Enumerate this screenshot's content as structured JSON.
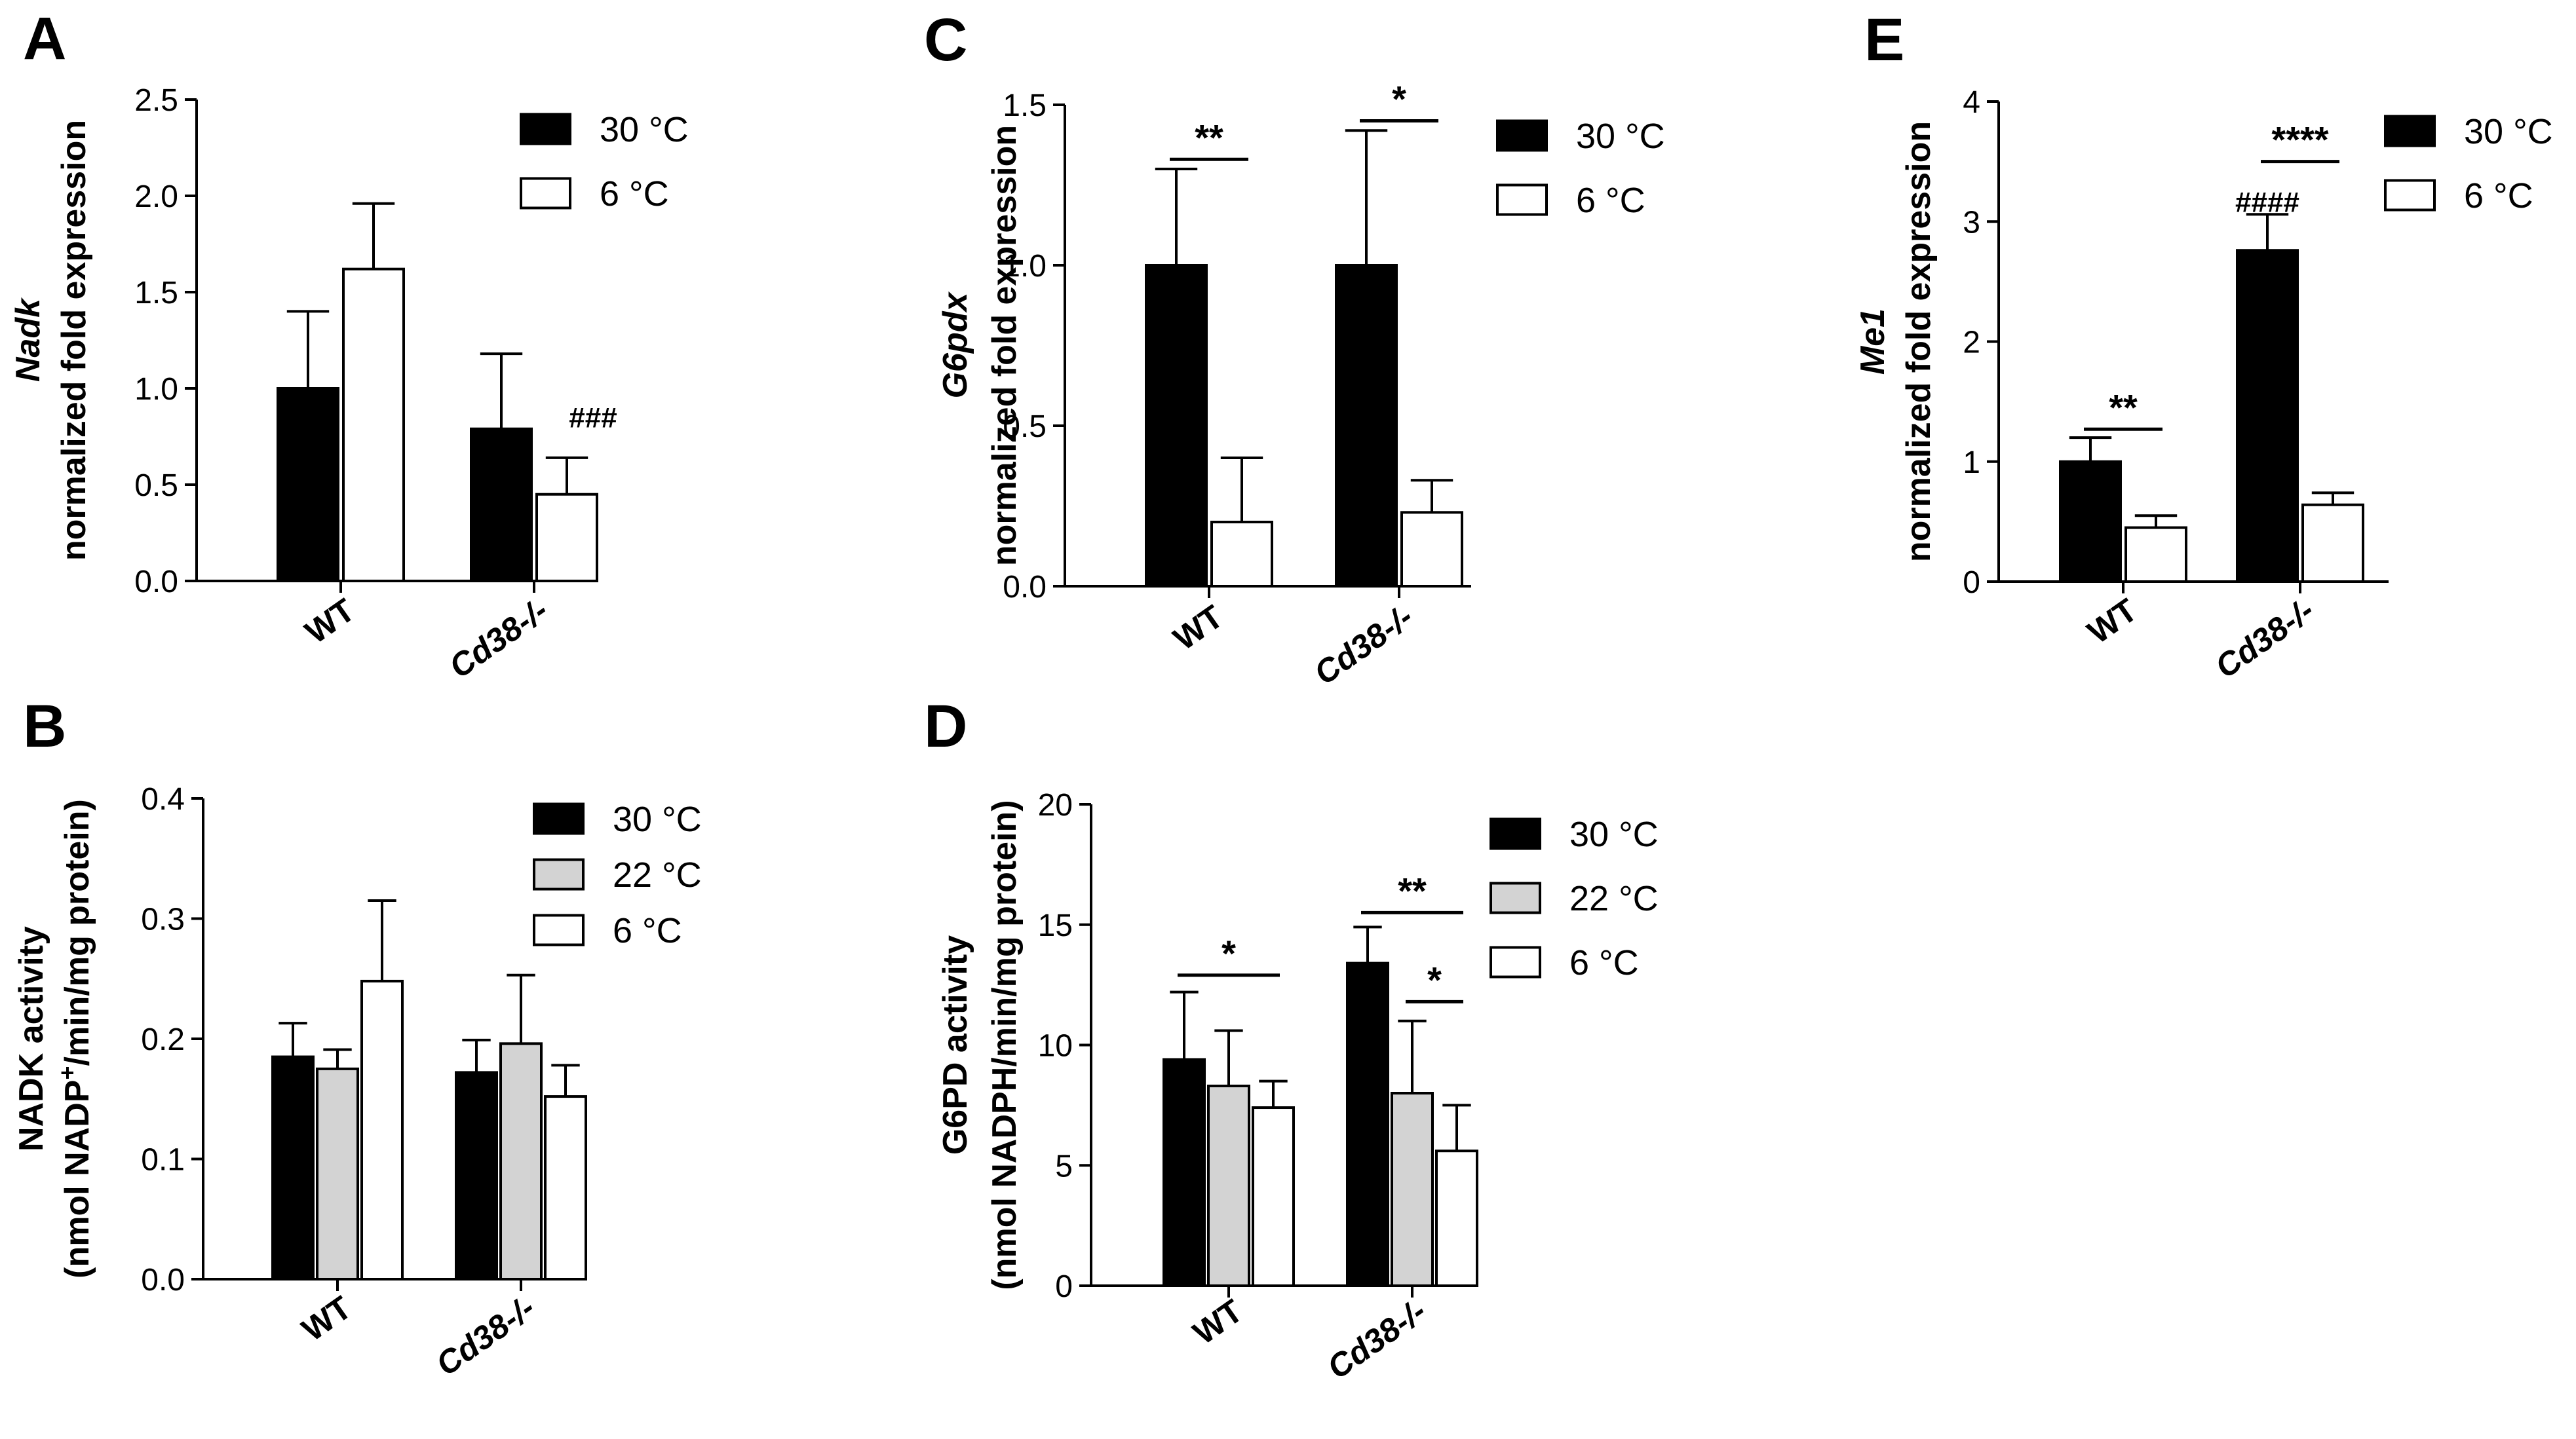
{
  "chart_data": [
    {
      "panel": "A",
      "type": "bar",
      "ylabel_lines": [
        "Nadk",
        "normalized fold expression"
      ],
      "ylabel_italic_line": 0,
      "ylim": [
        0,
        2.5
      ],
      "yticks": [
        0.0,
        0.5,
        1.0,
        1.5,
        2.0,
        2.5
      ],
      "ytick_labels": [
        "0.0",
        "0.5",
        "1.0",
        "1.5",
        "2.0",
        "2.5"
      ],
      "categories": [
        "WT",
        "Cd38-/-"
      ],
      "series": [
        {
          "name": "30 °C",
          "fill": "#000000",
          "values": [
            1.0,
            0.79
          ],
          "errors": [
            0.4,
            0.39
          ]
        },
        {
          "name": "6 °C",
          "fill": "#ffffff",
          "values": [
            1.62,
            0.45
          ],
          "errors": [
            0.34,
            0.19
          ]
        }
      ],
      "annotations": [
        {
          "kind": "hash",
          "text": "###",
          "category": 1,
          "series": 1
        }
      ]
    },
    {
      "panel": "B",
      "type": "bar",
      "ylabel_lines": [
        "NADK activity",
        "(nmol NADP+/min/mg protein)"
      ],
      "ylabel_italic_line": -1,
      "ylim": [
        0,
        0.4
      ],
      "yticks": [
        0.0,
        0.1,
        0.2,
        0.3,
        0.4
      ],
      "ytick_labels": [
        "0.0",
        "0.1",
        "0.2",
        "0.3",
        "0.4"
      ],
      "categories": [
        "WT",
        "Cd38-/-"
      ],
      "series": [
        {
          "name": "30 °C",
          "fill": "#000000",
          "values": [
            0.185,
            0.172
          ],
          "errors": [
            0.028,
            0.027
          ]
        },
        {
          "name": "22 °C",
          "fill": "#d3d3d3",
          "values": [
            0.175,
            0.196
          ],
          "errors": [
            0.016,
            0.057
          ]
        },
        {
          "name": "6 °C",
          "fill": "#ffffff",
          "values": [
            0.248,
            0.152
          ],
          "errors": [
            0.067,
            0.026
          ]
        }
      ],
      "annotations": []
    },
    {
      "panel": "C",
      "type": "bar",
      "ylabel_lines": [
        "G6pdx",
        "normalized fold expression"
      ],
      "ylabel_italic_line": 0,
      "ylim": [
        0,
        1.5
      ],
      "yticks": [
        0.0,
        0.5,
        1.0,
        1.5
      ],
      "ytick_labels": [
        "0.0",
        "0.5",
        "1.0",
        "1.5"
      ],
      "categories": [
        "WT",
        "Cd38-/-"
      ],
      "series": [
        {
          "name": "30 °C",
          "fill": "#000000",
          "values": [
            1.0,
            1.0
          ],
          "errors": [
            0.3,
            0.42
          ]
        },
        {
          "name": "6 °C",
          "fill": "#ffffff",
          "values": [
            0.2,
            0.23
          ],
          "errors": [
            0.2,
            0.1
          ]
        }
      ],
      "annotations": [
        {
          "kind": "sig",
          "text": "**",
          "category": 0,
          "from": 0,
          "to": 1,
          "y": 1.33
        },
        {
          "kind": "sig",
          "text": "*",
          "category": 1,
          "from": 0,
          "to": 1,
          "y": 1.45
        }
      ]
    },
    {
      "panel": "D",
      "type": "bar",
      "ylabel_lines": [
        "G6PD activity",
        "(nmol NADPH/min/mg protein)"
      ],
      "ylabel_italic_line": -1,
      "ylim": [
        0,
        20
      ],
      "yticks": [
        0,
        5,
        10,
        15,
        20
      ],
      "ytick_labels": [
        "0",
        "5",
        "10",
        "15",
        "20"
      ],
      "categories": [
        "WT",
        "Cd38-/-"
      ],
      "series": [
        {
          "name": "30 °C",
          "fill": "#000000",
          "values": [
            9.4,
            13.4
          ],
          "errors": [
            2.8,
            1.5
          ]
        },
        {
          "name": "22 °C",
          "fill": "#d3d3d3",
          "values": [
            8.3,
            8.0
          ],
          "errors": [
            2.3,
            3.0
          ]
        },
        {
          "name": "6 °C",
          "fill": "#ffffff",
          "values": [
            7.4,
            5.6
          ],
          "errors": [
            1.1,
            1.9
          ]
        }
      ],
      "annotations": [
        {
          "kind": "sig",
          "text": "*",
          "category": 0,
          "from": 0,
          "to": 2,
          "y": 12.9
        },
        {
          "kind": "sig",
          "text": "**",
          "category": 1,
          "from": 0,
          "to": 2,
          "y": 15.5
        },
        {
          "kind": "sig",
          "text": "*",
          "category": 1,
          "from": 1,
          "to": 2,
          "y": 11.8
        }
      ]
    },
    {
      "panel": "E",
      "type": "bar",
      "ylabel_lines": [
        "Me1",
        "normalized fold expression"
      ],
      "ylabel_italic_line": 0,
      "ylim": [
        0,
        4
      ],
      "yticks": [
        0,
        1,
        2,
        3,
        4
      ],
      "ytick_labels": [
        "0",
        "1",
        "2",
        "3",
        "4"
      ],
      "categories": [
        "WT",
        "Cd38-/-"
      ],
      "series": [
        {
          "name": "30 °C",
          "fill": "#000000",
          "values": [
            1.0,
            2.76
          ],
          "errors": [
            0.2,
            0.3
          ]
        },
        {
          "name": "6 °C",
          "fill": "#ffffff",
          "values": [
            0.45,
            0.64
          ],
          "errors": [
            0.1,
            0.1
          ]
        }
      ],
      "annotations": [
        {
          "kind": "sig",
          "text": "**",
          "category": 0,
          "from": 0,
          "to": 1,
          "y": 1.27
        },
        {
          "kind": "sig",
          "text": "****",
          "category": 1,
          "from": 0,
          "to": 1,
          "y": 3.5
        },
        {
          "kind": "hash",
          "text": "####",
          "category": 1,
          "series": 0
        }
      ]
    }
  ]
}
